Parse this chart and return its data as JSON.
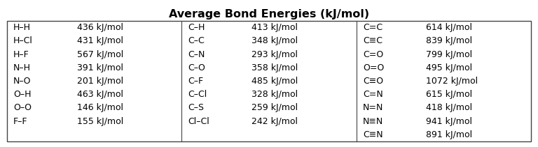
{
  "title": "Average Bond Energies (kJ/mol)",
  "title_fontsize": 11.5,
  "title_fontweight": "bold",
  "background_color": "#ffffff",
  "border_color": "#444444",
  "col1_bonds": [
    "H–H",
    "H–Cl",
    "H–F",
    "N–H",
    "N–O",
    "O–H",
    "O–O",
    "F–F",
    ""
  ],
  "col1_values": [
    "436 kJ/mol",
    "431 kJ/mol",
    "567 kJ/mol",
    "391 kJ/mol",
    "201 kJ/mol",
    "463 kJ/mol",
    "146 kJ/mol",
    "155 kJ/mol",
    ""
  ],
  "col2_bonds": [
    "C–H",
    "C–C",
    "C–N",
    "C–O",
    "C–F",
    "C–Cl",
    "C–S",
    "Cl–Cl",
    ""
  ],
  "col2_values": [
    "413 kJ/mol",
    "348 kJ/mol",
    "293 kJ/mol",
    "358 kJ/mol",
    "485 kJ/mol",
    "328 kJ/mol",
    "259 kJ/mol",
    "242 kJ/mol",
    ""
  ],
  "col3_bonds": [
    "C=C",
    "C≡C",
    "C=O",
    "O=O",
    "C≡O",
    "C=N",
    "N=N",
    "N≡N",
    "C≡N"
  ],
  "col3_values": [
    "614 kJ/mol",
    "839 kJ/mol",
    "799 kJ/mol",
    "495 kJ/mol",
    "1072 kJ/mol",
    "615 kJ/mol",
    "418 kJ/mol",
    "941 kJ/mol",
    "891 kJ/mol"
  ],
  "font_size": 9.0,
  "font_family": "DejaVu Sans"
}
